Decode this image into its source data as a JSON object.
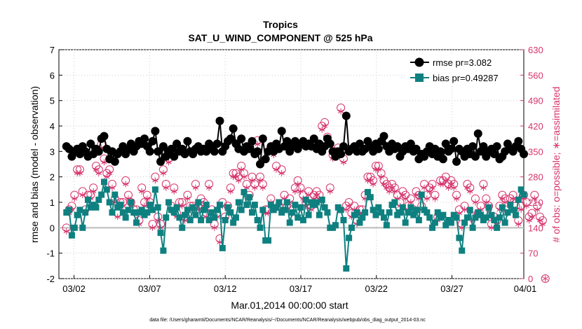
{
  "chart_data": {
    "type": "line",
    "title": "Tropics",
    "subtitle": "SAT_U_WIND_COMPONENT @ 525 hPa",
    "xlabel": "Mar.01,2014 00:00:00 start",
    "ylabel": "rmse and bias (model - observation)",
    "y2label": "# of obs: o=possible; ∗=assimilated",
    "footnote": "data file: /Users/gharamti/Documents/NCAR/Reanalysis/~/Documents/NCAR/Reanalysis/webpub/obs_diag_output_2014-03.nc",
    "xlim": [
      0.5,
      31.25
    ],
    "ylim": [
      -2,
      7
    ],
    "y2lim": [
      0,
      630
    ],
    "x_ticks": [
      1.5,
      6.5,
      11.5,
      16.5,
      21.5,
      26.5,
      31.5
    ],
    "x_tick_labels": [
      "03/02",
      "03/07",
      "03/12",
      "03/17",
      "03/22",
      "03/27",
      "04/01"
    ],
    "y_ticks": [
      -2,
      -1,
      0,
      1,
      2,
      3,
      4,
      5,
      6,
      7
    ],
    "y2_ticks": [
      0,
      70,
      140,
      210,
      280,
      350,
      420,
      490,
      560,
      630
    ],
    "series": [
      {
        "name": "rmse pr=3.082",
        "color": "#000000",
        "marker": "circle",
        "values": [
          3.2,
          3.1,
          2.8,
          3.0,
          3.1,
          2.9,
          3.2,
          3.0,
          2.8,
          3.3,
          2.9,
          3.1,
          3.0,
          3.5,
          3.6,
          3.1,
          2.7,
          3.0,
          2.6,
          2.9,
          3.0,
          3.2,
          2.9,
          3.1,
          3.3,
          3.0,
          3.2,
          3.4,
          3.3,
          3.5,
          3.2,
          3.0,
          3.4,
          3.8,
          3.0,
          2.6,
          3.2,
          2.8,
          3.0,
          3.1,
          2.8,
          3.3,
          3.0,
          3.1,
          2.9,
          3.4,
          3.0,
          2.9,
          3.1,
          3.2,
          3.0,
          3.1,
          3.0,
          3.3,
          3.2,
          3.0,
          3.3,
          4.2,
          3.0,
          3.2,
          3.4,
          3.5,
          3.9,
          3.3,
          3.1,
          3.5,
          3.0,
          3.2,
          3.1,
          3.4,
          2.9,
          3.0,
          2.5,
          3.5,
          2.7,
          3.0,
          3.2,
          3.0,
          3.3,
          3.1,
          3.8,
          3.2,
          3.4,
          3.0,
          3.2,
          3.4,
          3.1,
          3.3,
          3.4,
          3.2,
          3.3,
          3.2,
          3.5,
          3.1,
          3.3,
          3.0,
          3.2,
          3.5,
          3.3,
          3.0,
          2.8,
          3.0,
          2.9,
          3.2,
          4.4,
          3.0,
          3.1,
          3.2,
          3.0,
          3.3,
          3.0,
          3.1,
          3.4,
          3.2,
          3.0,
          3.3,
          3.1,
          3.4,
          3.6,
          3.2,
          3.0,
          3.3,
          3.1,
          3.2,
          2.8,
          3.0,
          3.2,
          3.1,
          3.3,
          3.0,
          3.1,
          2.7,
          2.9,
          2.8,
          3.0,
          3.2,
          2.9,
          3.1,
          2.8,
          3.0,
          2.7,
          3.3,
          3.0,
          3.1,
          3.4,
          2.6,
          3.1,
          3.0,
          2.8,
          3.1,
          2.9,
          3.2,
          2.8,
          3.7,
          3.0,
          3.2,
          2.8,
          3.0,
          3.1,
          2.9,
          3.2,
          2.7,
          2.8,
          3.0,
          3.3,
          3.1,
          3.0,
          3.2,
          3.4,
          3.1,
          2.9
        ]
      },
      {
        "name": "bias pr=0.49287",
        "color": "#0f8080",
        "marker": "square",
        "values": [
          0.6,
          0.7,
          -0.3,
          0.0,
          0.5,
          0.7,
          0.0,
          0.6,
          1.1,
          0.8,
          0.9,
          0.8,
          1.1,
          1.3,
          1.8,
          1.5,
          1.0,
          0.6,
          1.3,
          0.8,
          0.9,
          0.6,
          0.4,
          0.7,
          1.0,
          0.6,
          0.2,
          0.6,
          0.7,
          0.5,
          0.6,
          0.9,
          0.7,
          1.5,
          0.8,
          -0.2,
          -0.9,
          0.4,
          1.0,
          0.7,
          0.6,
          0.8,
          0.4,
          0.0,
          0.5,
          0.7,
          0.3,
          0.8,
          0.5,
          1.0,
          0.3,
          0.7,
          0.9,
          0.3,
          0.6,
          0.4,
          0.7,
          0.9,
          -0.8,
          0.3,
          0.8,
          0.6,
          0.2,
          0.4,
          1.0,
          0.7,
          1.4,
          0.9,
          1.2,
          0.6,
          0.9,
          0.3,
          0.0,
          0.7,
          -0.5,
          -0.5,
          0.9,
          0.7,
          0.8,
          1.0,
          0.6,
          0.7,
          1.0,
          0.2,
          0.6,
          0.9,
          0.4,
          0.8,
          0.3,
          1.1,
          0.5,
          1.0,
          0.9,
          1.0,
          0.5,
          1.1,
          0.8,
          0.6,
          0.0,
          0.0,
          0.1,
          0.8,
          0.7,
          0.3,
          -1.6,
          -0.4,
          0.0,
          0.5,
          0.6,
          0.2,
          0.4,
          0.6,
          1.4,
          1.2,
          0.7,
          0.5,
          0.8,
          0.6,
          0.4,
          0.1,
          0.6,
          0.9,
          1.0,
          0.5,
          0.6,
          0.8,
          0.2,
          0.6,
          0.8,
          0.5,
          0.7,
          0.3,
          1.3,
          0.7,
          0.6,
          0.4,
          0.0,
          0.2,
          0.6,
          0.4,
          0.5,
          0.1,
          0.3,
          0.2,
          0.5,
          0.4,
          -0.4,
          -0.9,
          0.2,
          0.4,
          0.7,
          0.0,
          0.4,
          0.6,
          0.5,
          0.3,
          0.4,
          0.8,
          0.5,
          0.3,
          0.0,
          0.4,
          0.8,
          0.2,
          0.6,
          0.9,
          0.7,
          0.5,
          1.1,
          1.5,
          1.3
        ]
      },
      {
        "name": "possible",
        "axis": "right",
        "color": "#d6336c",
        "marker": "circle-open",
        "values": [
          140,
          190,
          200,
          230,
          300,
          300,
          240,
          190,
          230,
          230,
          250,
          310,
          300,
          370,
          330,
          290,
          300,
          260,
          220,
          180,
          210,
          210,
          270,
          230,
          210,
          190,
          190,
          160,
          250,
          210,
          230,
          210,
          150,
          280,
          170,
          150,
          300,
          260,
          330,
          200,
          250,
          180,
          210,
          210,
          170,
          230,
          200,
          200,
          260,
          200,
          220,
          210,
          180,
          260,
          190,
          150,
          180,
          110,
          210,
          170,
          200,
          250,
          290,
          290,
          280,
          310,
          290,
          260,
          230,
          280,
          260,
          380,
          280,
          260,
          190,
          190,
          220,
          350,
          310,
          200,
          300,
          230,
          200,
          220,
          190,
          250,
          270,
          250,
          230,
          210,
          240,
          200,
          230,
          240,
          230,
          420,
          430,
          390,
          250,
          340,
          350,
          360,
          470,
          330,
          200,
          210,
          180,
          200,
          160,
          190,
          190,
          230,
          280,
          280,
          270,
          310,
          310,
          290,
          270,
          260,
          250,
          260,
          250,
          230,
          210,
          240,
          230,
          200,
          220,
          190,
          240,
          230,
          200,
          260,
          230,
          250,
          260,
          230,
          170,
          270,
          270,
          280,
          260,
          270,
          260,
          230,
          190,
          150,
          200,
          260,
          250,
          170,
          220,
          180,
          200,
          260,
          220,
          200,
          150,
          170,
          160,
          200,
          230,
          220,
          190,
          220,
          230,
          200,
          160,
          200,
          230,
          210,
          170,
          180,
          230,
          200,
          170,
          160,
          0
        ]
      },
      {
        "name": "assimilated",
        "axis": "right",
        "color": "#d6336c",
        "marker": "asterisk",
        "values": [
          130,
          180,
          190,
          220,
          290,
          290,
          230,
          180,
          220,
          220,
          240,
          300,
          290,
          360,
          320,
          280,
          290,
          250,
          210,
          170,
          200,
          200,
          260,
          220,
          200,
          180,
          180,
          150,
          240,
          200,
          220,
          200,
          140,
          270,
          160,
          140,
          290,
          250,
          320,
          190,
          240,
          170,
          200,
          200,
          160,
          220,
          190,
          190,
          250,
          190,
          210,
          200,
          170,
          250,
          180,
          140,
          170,
          100,
          200,
          160,
          190,
          240,
          280,
          280,
          270,
          300,
          280,
          250,
          220,
          270,
          250,
          370,
          270,
          250,
          180,
          180,
          210,
          340,
          300,
          190,
          290,
          220,
          190,
          210,
          180,
          240,
          260,
          240,
          220,
          200,
          230,
          190,
          220,
          230,
          220,
          410,
          420,
          380,
          240,
          330,
          340,
          350,
          460,
          320,
          190,
          200,
          170,
          190,
          150,
          180,
          180,
          220,
          270,
          270,
          260,
          300,
          300,
          280,
          260,
          250,
          240,
          250,
          240,
          220,
          200,
          230,
          220,
          190,
          210,
          180,
          230,
          220,
          190,
          250,
          220,
          240,
          250,
          220,
          160,
          260,
          260,
          270,
          250,
          260,
          250,
          220,
          180,
          140,
          190,
          250,
          240,
          160,
          210,
          170,
          190,
          250,
          210,
          190,
          140,
          160,
          150,
          190,
          220,
          210,
          180,
          210,
          220,
          190,
          150,
          190,
          220,
          200,
          160,
          170,
          220,
          190,
          160,
          150,
          0
        ]
      }
    ]
  }
}
